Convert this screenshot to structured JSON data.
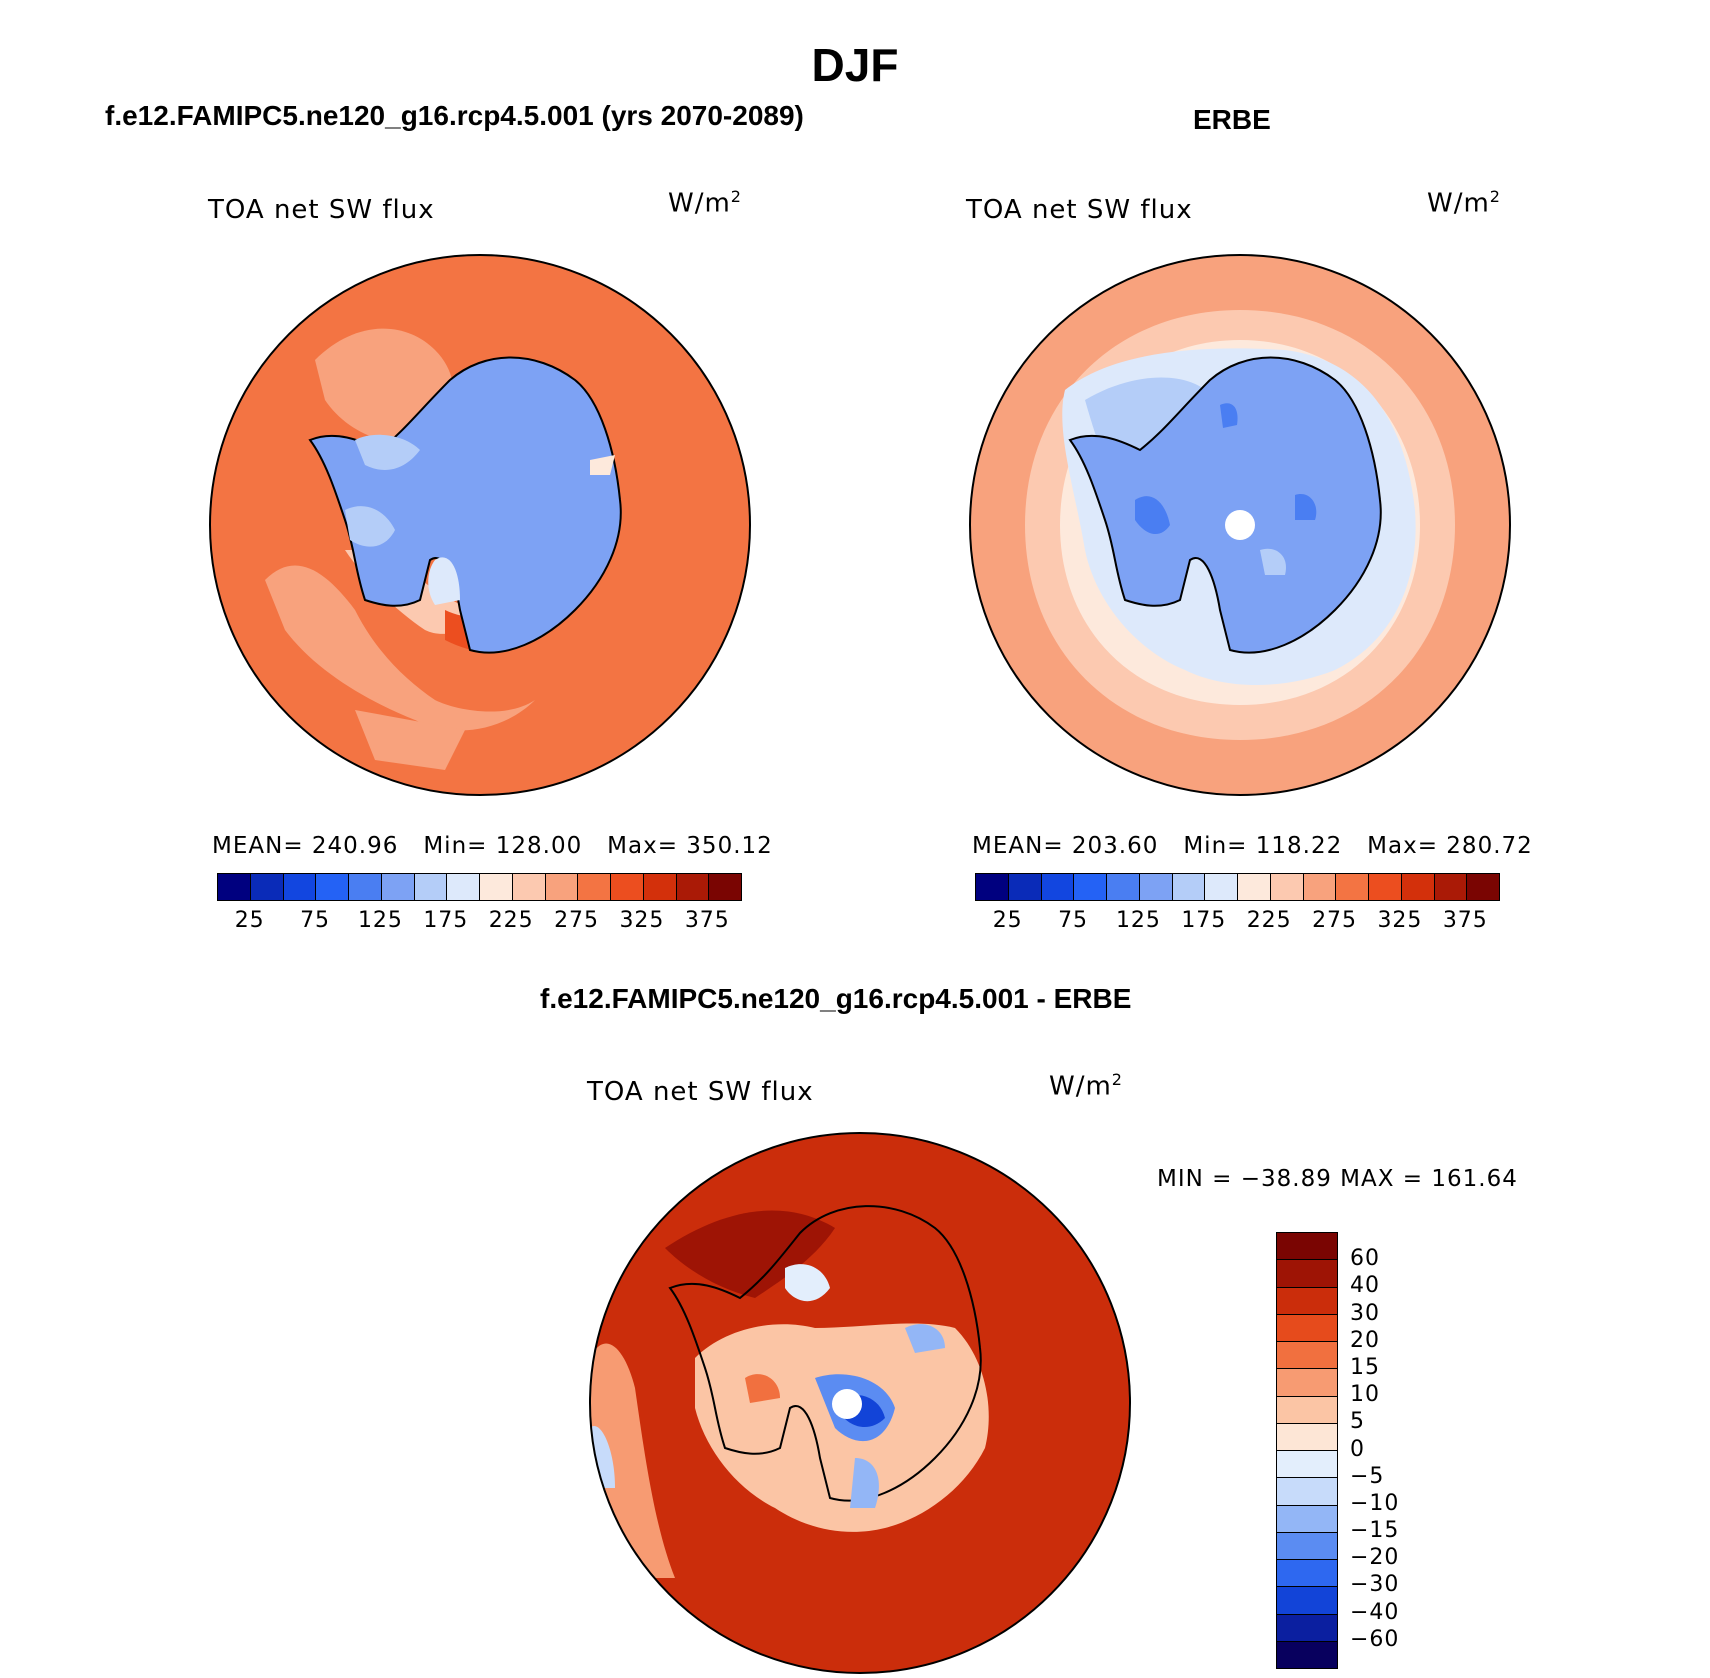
{
  "title": "DJF",
  "colors": {
    "abs_scale": [
      "#00007f",
      "#0a2bb8",
      "#1246e0",
      "#2462f5",
      "#4a7ef2",
      "#7da2f4",
      "#b4cdf8",
      "#dde9fb",
      "#fde9dc",
      "#fcc9b0",
      "#f8a27d",
      "#f37443",
      "#ec4e1f",
      "#d3300b",
      "#aa1a06",
      "#7a0502"
    ],
    "diff_scale": [
      "#08005e",
      "#0b1fa0",
      "#1244d8",
      "#2e68f0",
      "#5b8cf2",
      "#93b6f6",
      "#c7dbfa",
      "#e3eefc",
      "#fde6d6",
      "#fbc5a5",
      "#f79b72",
      "#f1703f",
      "#e64b1c",
      "#cb2d0b",
      "#9e1405"
    ]
  },
  "panels": [
    {
      "case_title": "f.e12.FAMIPC5.ne120_g16.rcp4.5.001 (yrs 2070-2089)",
      "variable": "TOA net SW flux",
      "unit_base": "W/m",
      "unit_exp": "2",
      "stats": {
        "mean_label": "MEAN=",
        "mean": "240.96",
        "min_label": "Min=",
        "min": "128.00",
        "max_label": "Max=",
        "max": "350.12"
      },
      "colorbar_ticks": [
        "25",
        "75",
        "125",
        "175",
        "225",
        "275",
        "325",
        "375"
      ]
    },
    {
      "case_title": "ERBE",
      "variable": "TOA net SW flux",
      "unit_base": "W/m",
      "unit_exp": "2",
      "stats": {
        "mean_label": "MEAN=",
        "mean": "203.60",
        "min_label": "Min=",
        "min": "118.22",
        "max_label": "Max=",
        "max": "280.72"
      },
      "colorbar_ticks": [
        "25",
        "75",
        "125",
        "175",
        "225",
        "275",
        "325",
        "375"
      ]
    }
  ],
  "difference": {
    "case_title": "f.e12.FAMIPC5.ne120_g16.rcp4.5.001 - ERBE",
    "variable": "TOA net SW flux",
    "unit_base": "W/m",
    "unit_exp": "2",
    "minmax_text": "MIN = −38.89 MAX = 161.64",
    "colorbar_ticks": [
      "60",
      "40",
      "30",
      "20",
      "15",
      "10",
      "5",
      "0",
      "−5",
      "−10",
      "−15",
      "−20",
      "−30",
      "−40",
      "−60"
    ]
  }
}
